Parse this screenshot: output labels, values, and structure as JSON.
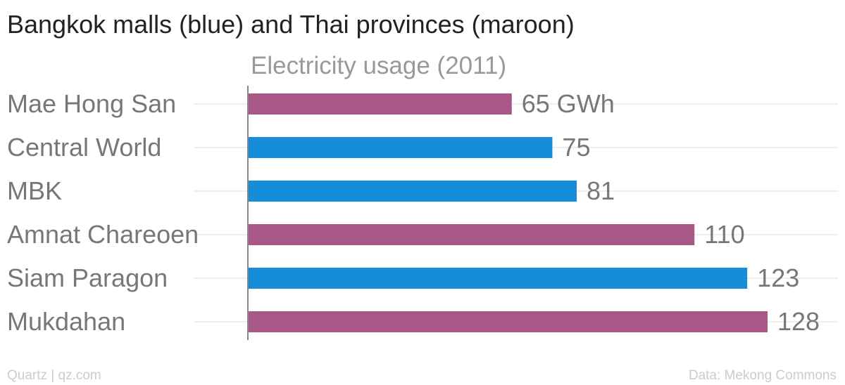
{
  "chart_data": {
    "type": "bar",
    "orientation": "horizontal",
    "title": "Bangkok malls (blue) and Thai provinces (maroon)",
    "subtitle": "Electricity usage (2011)",
    "categories": [
      "Mae Hong San",
      "Central World",
      "MBK",
      "Amnat Chareoen",
      "Siam Paragon",
      "Mukdahan"
    ],
    "values": [
      65,
      75,
      81,
      110,
      123,
      128
    ],
    "value_labels": [
      "65 GWh",
      "75",
      "81",
      "110",
      "123",
      "128"
    ],
    "kinds": [
      "province",
      "mall",
      "mall",
      "province",
      "mall",
      "province"
    ],
    "unit": "GWh",
    "xlim": [
      0,
      128
    ],
    "grid": true,
    "legend": "none"
  },
  "colors": {
    "mall": "#168dd9",
    "province": "#a85787",
    "gridline": "#eeeeee",
    "axis": "#888888",
    "label": "#777777"
  },
  "footer": {
    "source_left": "Quartz | qz.com",
    "source_right": "Data: Mekong Commons"
  }
}
